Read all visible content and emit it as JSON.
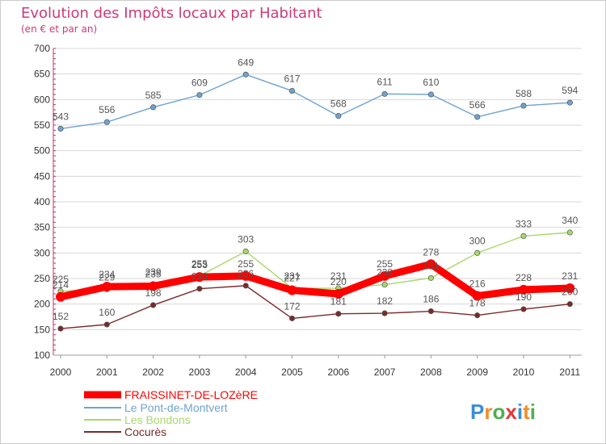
{
  "chart_data": {
    "type": "line",
    "title": "Evolution des Impôts locaux par Habitant",
    "subtitle": "(en € et par an)",
    "categories": [
      "2000",
      "2001",
      "2002",
      "2003",
      "2004",
      "2005",
      "2006",
      "2007",
      "2008",
      "2009",
      "2010",
      "2011"
    ],
    "y_ticks": [
      "100",
      "150",
      "200",
      "250",
      "300",
      "350",
      "400",
      "450",
      "500",
      "550",
      "600",
      "650",
      "700"
    ],
    "ylim": [
      100,
      700
    ],
    "grid": "horizontal",
    "legend_position": "bottom-left",
    "series": [
      {
        "name": "FRAISSINET-DE-LOZèRE",
        "color": "#ff0000",
        "values": [
          214,
          234,
          235,
          253,
          255,
          227,
          220,
          255,
          278,
          216,
          228,
          231
        ],
        "labels": [
          "214",
          "234",
          "235",
          "253",
          "255",
          "227",
          "220",
          "255",
          "278",
          "216",
          "228",
          "231"
        ]
      },
      {
        "name": "Le Pont-de-Montvert",
        "color": "#6fa3d1",
        "values": [
          543,
          556,
          585,
          609,
          649,
          617,
          568,
          611,
          610,
          566,
          588,
          594
        ],
        "labels": [
          "543",
          "556",
          "585",
          "609",
          "649",
          "617",
          "568",
          "611",
          "610",
          "566",
          "588",
          "594"
        ]
      },
      {
        "name": "Les Bondons",
        "color": "#a6d96a",
        "values": [
          225,
          229,
          239,
          255,
          303,
          231,
          231,
          238,
          251,
          300,
          333,
          340
        ],
        "labels": [
          "225",
          "229",
          "239",
          "255",
          "303",
          "231",
          "231",
          "238",
          "251",
          "300",
          "333",
          "340"
        ]
      },
      {
        "name": "Cocurès",
        "color": "#7a2a2a",
        "values": [
          152,
          160,
          198,
          230,
          236,
          172,
          181,
          182,
          186,
          178,
          190,
          200
        ],
        "labels": [
          "152",
          "160",
          "198",
          "230",
          "236",
          "172",
          "181",
          "182",
          "186",
          "178",
          "190",
          "200"
        ]
      }
    ]
  },
  "branding": {
    "logo_text": "Proxiti"
  }
}
